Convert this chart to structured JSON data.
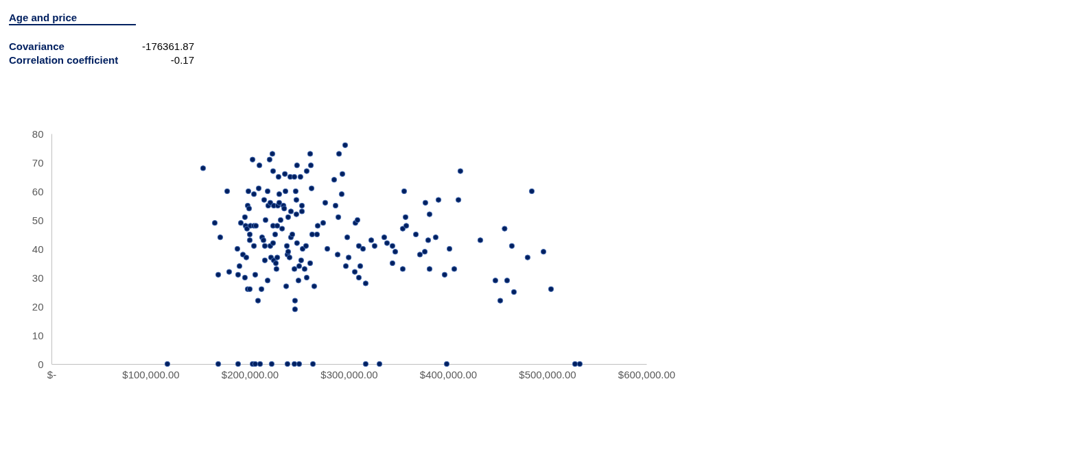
{
  "chart_data": {
    "type": "scatter",
    "title": "Age and price",
    "annotations": [
      "Covariance",
      "-176361.87",
      "Correlation coefficient",
      "-0.17"
    ],
    "xlim": [
      0,
      600000
    ],
    "xticks": [
      {
        "value": 0,
        "label": "$-"
      },
      {
        "value": 100000,
        "label": "$100,000.00"
      },
      {
        "value": 200000,
        "label": "$200,000.00"
      },
      {
        "value": 300000,
        "label": "$300,000.00"
      },
      {
        "value": 400000,
        "label": "$400,000.00"
      },
      {
        "value": 500000,
        "label": "$500,000.00"
      },
      {
        "value": 600000,
        "label": "$600,000.00"
      }
    ],
    "ylim": [
      0,
      80
    ],
    "yticks": [
      0,
      10,
      20,
      30,
      40,
      50,
      60,
      70,
      80
    ],
    "grid": false,
    "marker": "circle",
    "series": [
      {
        "color": "#002060",
        "x": [
          116900,
          168200,
          188200,
          202800,
          205500,
          210400,
          222100,
          238000,
          245000,
          249800,
          263700,
          316900,
          330800,
          398600,
          528000,
          532800,
          152900,
          164700,
          170200,
          168200,
          177200,
          179200,
          187500,
          188200,
          189600,
          191000,
          193100,
          195100,
          195100,
          195800,
          196500,
          197200,
          197900,
          197900,
          198600,
          199300,
          200000,
          200000,
          200700,
          200000,
          202800,
          204200,
          204200,
          205500,
          204200,
          206200,
          208300,
          209000,
          209700,
          211800,
          212400,
          213800,
          214500,
          215200,
          215200,
          215900,
          218000,
          218000,
          218600,
          220000,
          220700,
          220700,
          221400,
          222800,
          223500,
          223500,
          223500,
          224200,
          224200,
          225600,
          226300,
          226900,
          227700,
          227700,
          228300,
          229000,
          229700,
          229700,
          231100,
          232600,
          234000,
          234700,
          235400,
          236000,
          236700,
          237400,
          238000,
          238700,
          238700,
          240100,
          240800,
          241500,
          241500,
          242900,
          245000,
          245000,
          245600,
          245600,
          246300,
          247000,
          247000,
          247600,
          247600,
          249100,
          249800,
          251100,
          251800,
          252600,
          252600,
          253300,
          255300,
          256700,
          257400,
          257400,
          260900,
          260900,
          261600,
          262300,
          262900,
          265000,
          267800,
          268500,
          274000,
          276100,
          278200,
          285100,
          286500,
          288600,
          289300,
          290000,
          292700,
          293400,
          296200,
          296900,
          298300,
          299700,
          305900,
          306500,
          308600,
          310000,
          310000,
          311400,
          314200,
          316900,
          322500,
          325900,
          335600,
          338400,
          343900,
          343900,
          346700,
          354300,
          354300,
          355700,
          357100,
          357800,
          367500,
          371600,
          376500,
          377100,
          379900,
          381300,
          381300,
          387500,
          390300,
          396500,
          401400,
          406200,
          410400,
          412400,
          432500,
          447700,
          452600,
          457000,
          459500,
          464300,
          466400,
          480200,
          484400,
          496200,
          503800
        ],
        "values": [
          0,
          0,
          0,
          0,
          0,
          0,
          0,
          0,
          0,
          0,
          0,
          0,
          0,
          0,
          0,
          0,
          68,
          49,
          44,
          31,
          60,
          32,
          40,
          31,
          34,
          49,
          38,
          51,
          30,
          48,
          37,
          47,
          55,
          26,
          60,
          54,
          45,
          43,
          48,
          26,
          71,
          41,
          48,
          31,
          59,
          48,
          22,
          61,
          69,
          26,
          44,
          43,
          57,
          41,
          36,
          50,
          60,
          29,
          55,
          71,
          56,
          41,
          37,
          73,
          42,
          48,
          67,
          55,
          36,
          45,
          35,
          33,
          48,
          37,
          55,
          65,
          56,
          59,
          50,
          47,
          55,
          54,
          66,
          60,
          27,
          41,
          38,
          51,
          39,
          37,
          65,
          44,
          53,
          45,
          65,
          33,
          22,
          19,
          60,
          57,
          52,
          69,
          42,
          29,
          34,
          65,
          36,
          53,
          55,
          40,
          33,
          41,
          67,
          30,
          73,
          35,
          69,
          61,
          45,
          27,
          45,
          48,
          49,
          56,
          40,
          64,
          55,
          38,
          51,
          73,
          59,
          66,
          76,
          34,
          44,
          37,
          32,
          49,
          50,
          41,
          30,
          34,
          40,
          28,
          43,
          41,
          44,
          42,
          41,
          35,
          39,
          33,
          47,
          60,
          51,
          48,
          45,
          38,
          39,
          56,
          43,
          52,
          33,
          44,
          57,
          31,
          40,
          33,
          57,
          67,
          43,
          29,
          22,
          47,
          29,
          41,
          25,
          37,
          60,
          39,
          26
        ]
      }
    ]
  }
}
